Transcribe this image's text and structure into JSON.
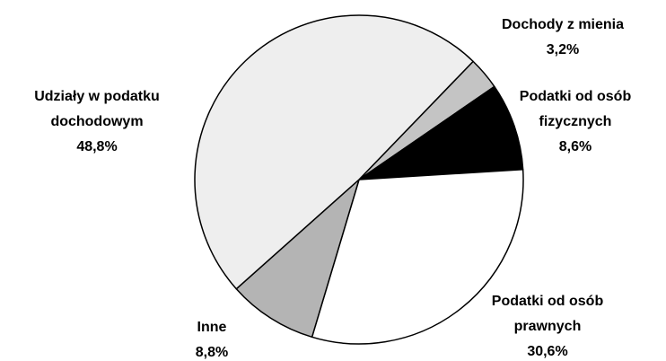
{
  "chart_data": {
    "type": "pie",
    "categories": [
      "Dochody z mienia",
      "Podatki od osób fizycznych",
      "Podatki od osób prawnych",
      "Inne",
      "Udziały w podatku dochodowym"
    ],
    "values": [
      3.2,
      8.6,
      30.6,
      8.8,
      48.8
    ],
    "value_labels": [
      "3,2%",
      "8,6%",
      "30,6%",
      "8,8%",
      "48,8%"
    ],
    "colors": [
      "#c4c4c4",
      "#000000",
      "#ffffff",
      "#b4b4b4",
      "#eeeeee"
    ]
  }
}
